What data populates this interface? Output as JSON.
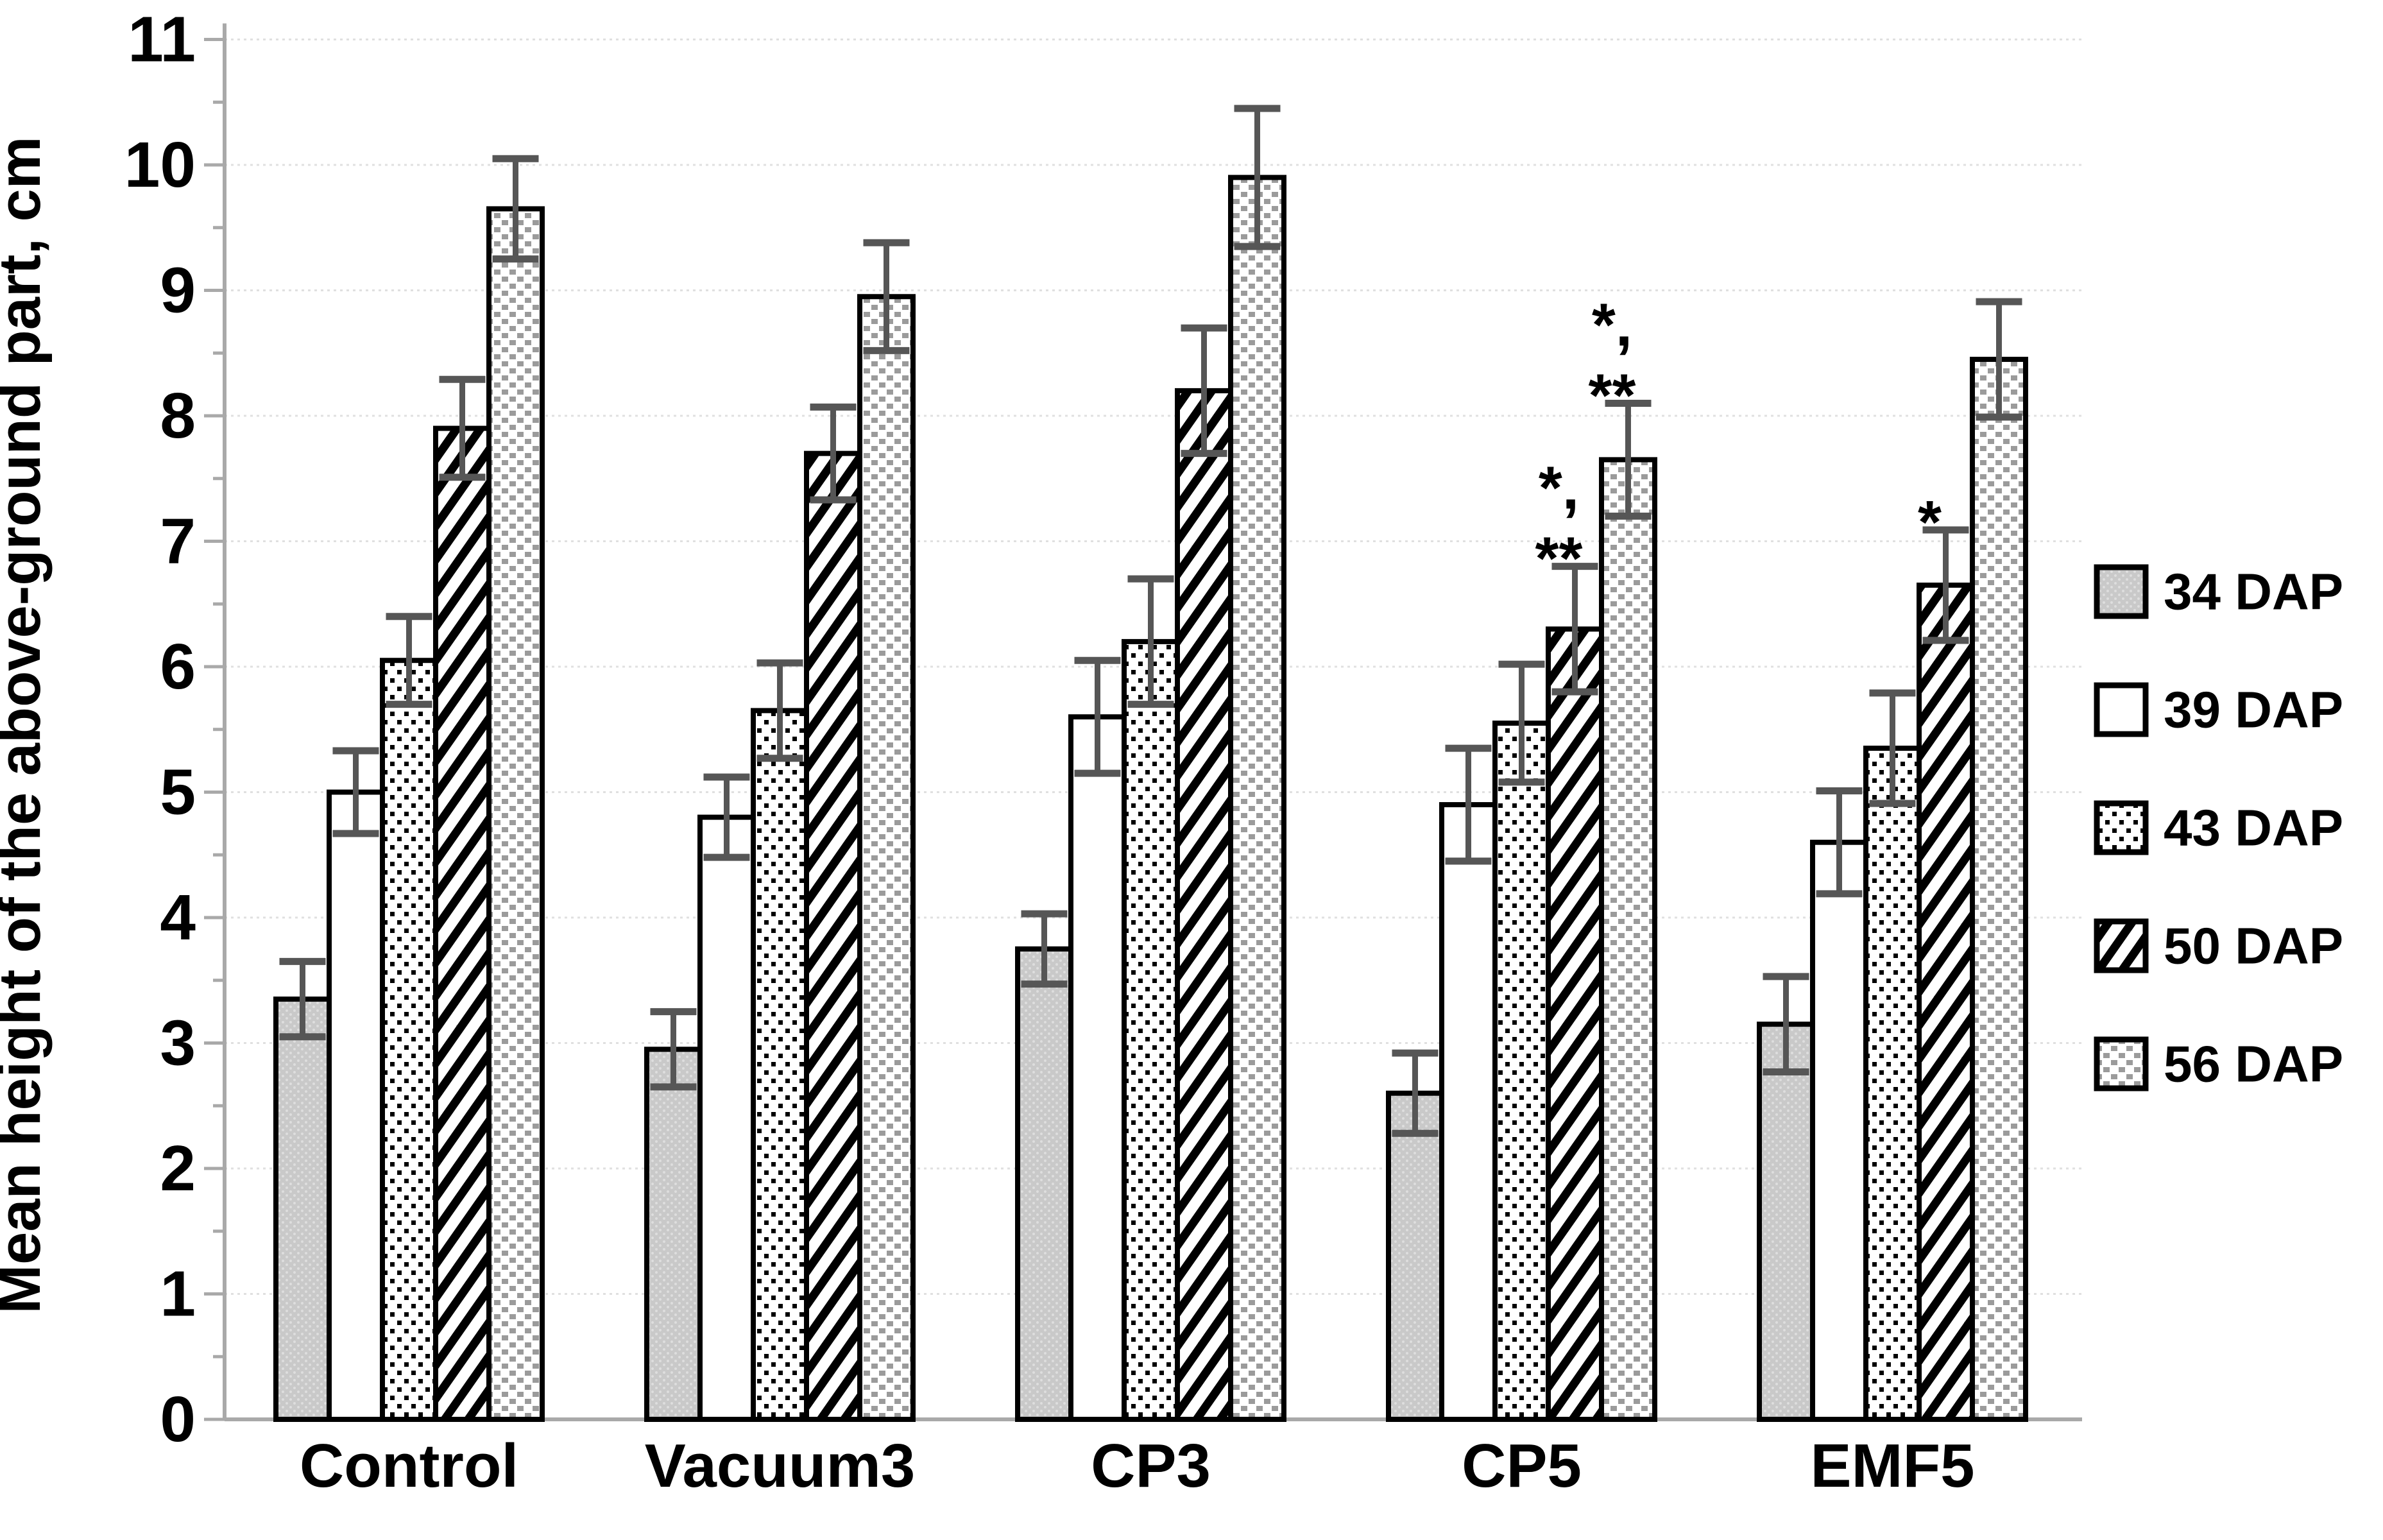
{
  "figure": {
    "background": "#ffffff"
  },
  "chart_data": {
    "type": "bar",
    "title": "",
    "xlabel": "",
    "ylabel": "Mean height of the above-ground part, cm",
    "ylim": [
      0,
      11
    ],
    "ytick_step": 1,
    "y_minor_tick_step": 0.5,
    "grid": "horizontal light dotted lines at integer values",
    "legend_position": "right, vertically centered",
    "categories": [
      "Control",
      "Vacuum3",
      "CP3",
      "CP5",
      "EMF5"
    ],
    "series": [
      {
        "name": "34 DAP",
        "pattern": "light-gray-fill",
        "values": [
          3.35,
          2.95,
          3.75,
          2.6,
          3.15
        ],
        "errors": [
          0.3,
          0.3,
          0.28,
          0.32,
          0.38
        ]
      },
      {
        "name": "39 DAP",
        "pattern": "white-fill",
        "values": [
          5.0,
          4.8,
          5.6,
          4.9,
          4.6
        ],
        "errors": [
          0.33,
          0.32,
          0.45,
          0.45,
          0.41
        ]
      },
      {
        "name": "43 DAP",
        "pattern": "black-dotted-fill",
        "values": [
          6.05,
          5.65,
          6.2,
          5.55,
          5.35
        ],
        "errors": [
          0.35,
          0.38,
          0.5,
          0.47,
          0.44
        ]
      },
      {
        "name": "50 DAP",
        "pattern": "diagonal-striped-fill",
        "values": [
          7.9,
          7.7,
          8.2,
          6.3,
          6.65
        ],
        "errors": [
          0.39,
          0.37,
          0.5,
          0.5,
          0.44
        ]
      },
      {
        "name": "56 DAP",
        "pattern": "gray-checkered-fill",
        "values": [
          9.65,
          8.95,
          9.9,
          7.65,
          8.45
        ],
        "errors": [
          0.4,
          0.43,
          0.55,
          0.45,
          0.46
        ]
      }
    ],
    "annotations": [
      {
        "category": "CP5",
        "series": "50 DAP",
        "lines": [
          "*,",
          "**"
        ]
      },
      {
        "category": "CP5",
        "series": "56 DAP",
        "lines": [
          "*,",
          "**"
        ]
      },
      {
        "category": "EMF5",
        "series": "50 DAP",
        "lines": [
          "*"
        ]
      }
    ],
    "yticks": [
      "0",
      "1",
      "2",
      "3",
      "4",
      "5",
      "6",
      "7",
      "8",
      "9",
      "10",
      "11"
    ],
    "error_bar_color": "#565656",
    "axis_color": "#a9a9a9",
    "grid_color": "#e0e0e0",
    "text_color": "#000000"
  }
}
